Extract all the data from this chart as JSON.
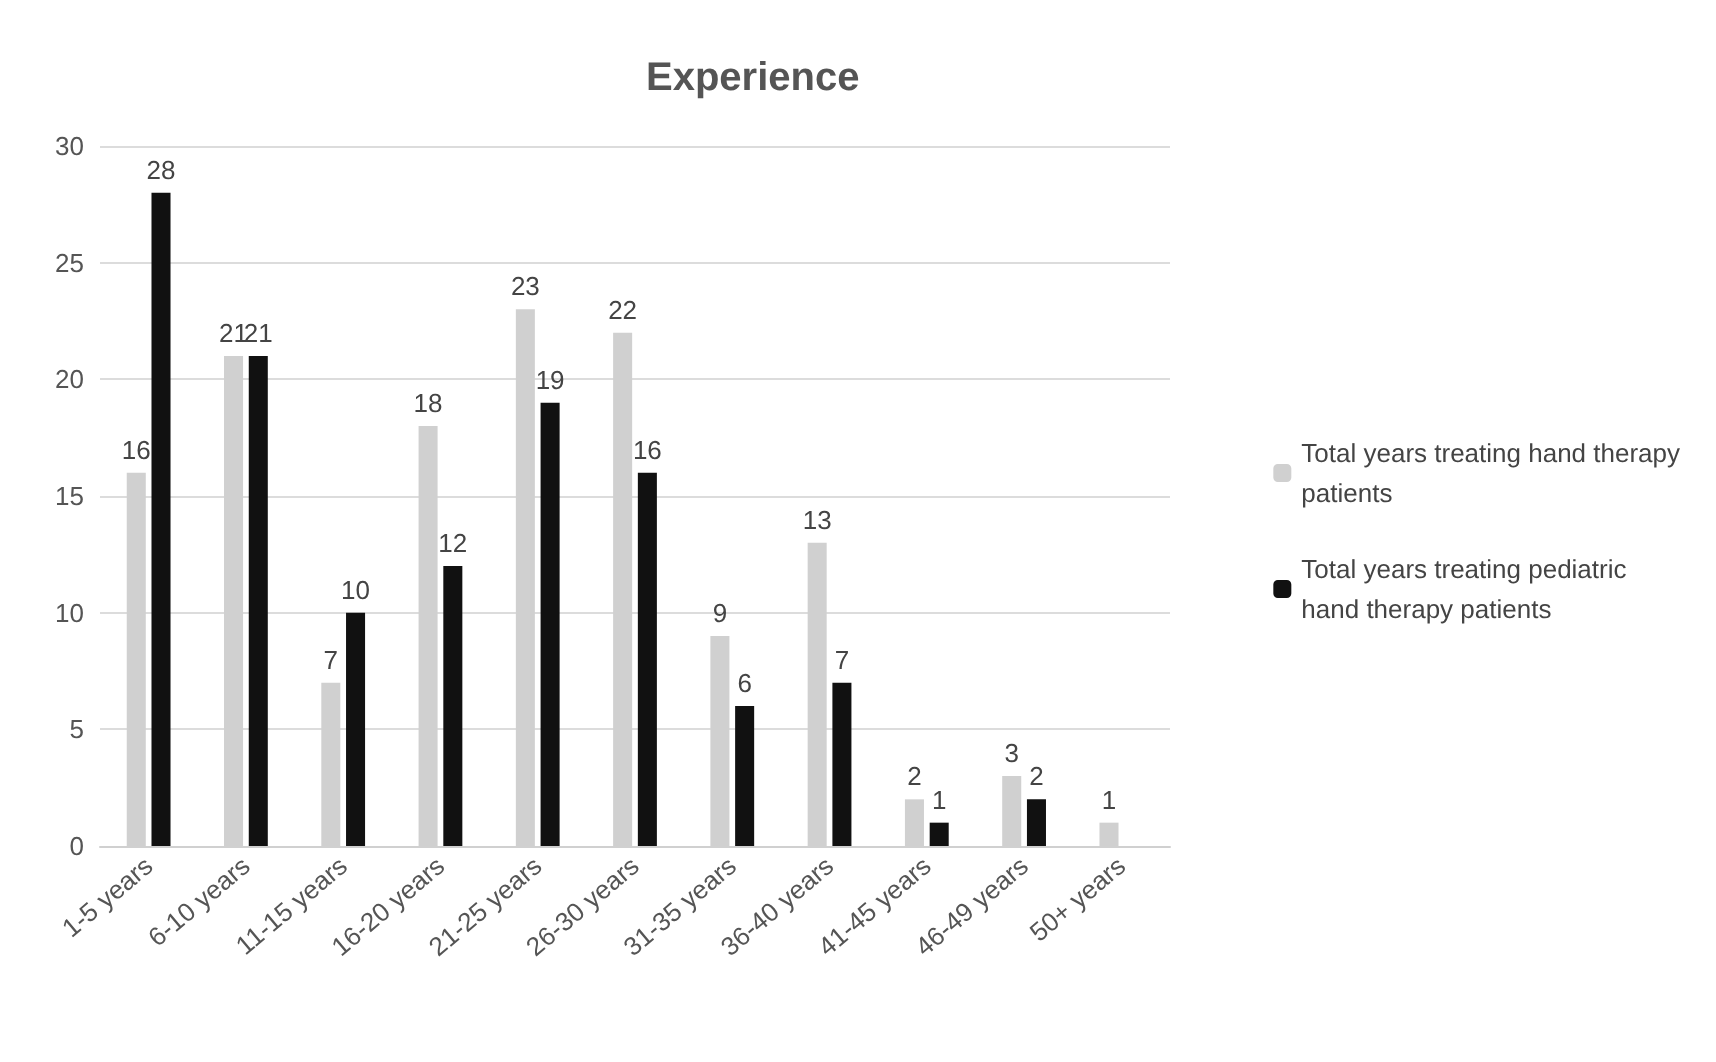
{
  "chart_data": {
    "type": "bar",
    "title": "Experience",
    "categories": [
      "1-5 years",
      "6-10 years",
      "11-15 years",
      "16-20 years",
      "21-25 years",
      "26-30 years",
      "31-35 years",
      "36-40 years",
      "41-45 years",
      "46-49 years",
      "50+ years"
    ],
    "series": [
      {
        "name": "Total years treating hand therapy patients",
        "color": "#d0d0d0",
        "values": [
          16,
          21,
          7,
          18,
          23,
          22,
          9,
          13,
          2,
          3,
          1
        ]
      },
      {
        "name": "Total years treating pediatric hand therapy patients",
        "color": "#111111",
        "values": [
          28,
          21,
          10,
          12,
          19,
          16,
          6,
          7,
          1,
          2,
          null
        ]
      }
    ],
    "ylim": [
      0,
      30
    ],
    "yticks": [
      0,
      5,
      10,
      15,
      20,
      25,
      30
    ],
    "grid": "y",
    "legend": "right",
    "data_labels": true
  }
}
